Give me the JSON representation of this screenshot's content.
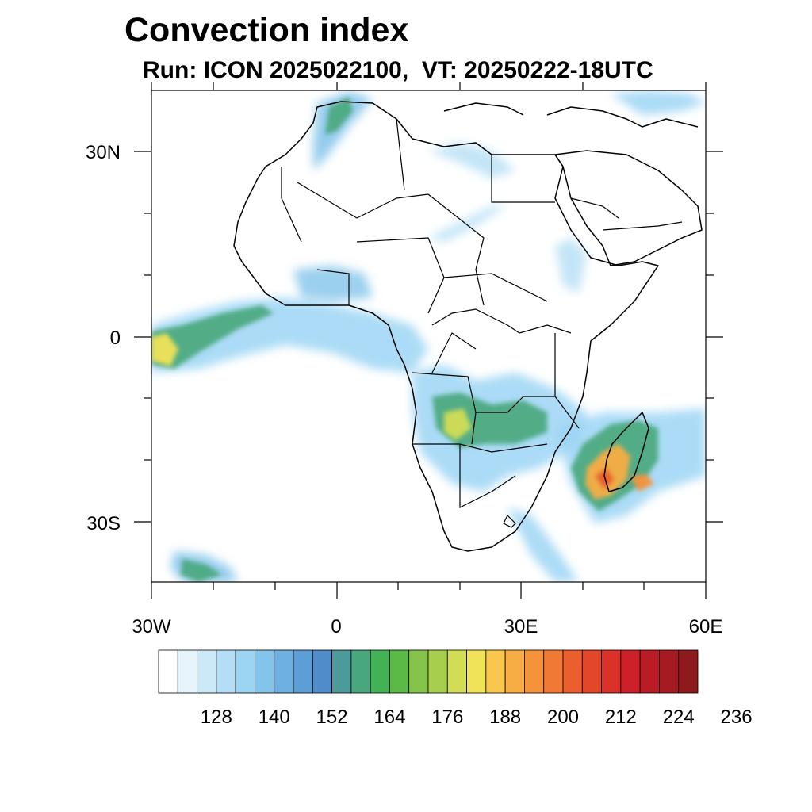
{
  "title": "Convection index",
  "subtitle": "Run: ICON 2025022100,  VT: 20250222-18UTC",
  "axes": {
    "lon_labels": [
      {
        "lon": -30,
        "text": "30W"
      },
      {
        "lon": 0,
        "text": "0"
      },
      {
        "lon": 30,
        "text": "30E"
      },
      {
        "lon": 60,
        "text": "60E"
      }
    ],
    "lat_labels": [
      {
        "lat": 30,
        "text": "30N"
      },
      {
        "lat": 0,
        "text": "0"
      },
      {
        "lat": -30,
        "text": "30S"
      }
    ]
  },
  "colorbar": {
    "colors": [
      "#ffffff",
      "#e6f5fc",
      "#cce9f8",
      "#b4def5",
      "#9cd5f4",
      "#82c4ea",
      "#6db0e1",
      "#5c9ed6",
      "#4f8cc9",
      "#4c9a9a",
      "#48a77c",
      "#43b155",
      "#5bb946",
      "#85c44b",
      "#a8ce4e",
      "#d2dc55",
      "#f0e35a",
      "#f9c74e",
      "#f8ad44",
      "#f5933b",
      "#f07a35",
      "#eb5f2e",
      "#e34729",
      "#da3129",
      "#cc2128",
      "#b91c25",
      "#a61a22",
      "#8f1a1d"
    ],
    "labels": [
      "128",
      "140",
      "152",
      "164",
      "176",
      "188",
      "200",
      "212",
      "224",
      "236"
    ]
  }
}
